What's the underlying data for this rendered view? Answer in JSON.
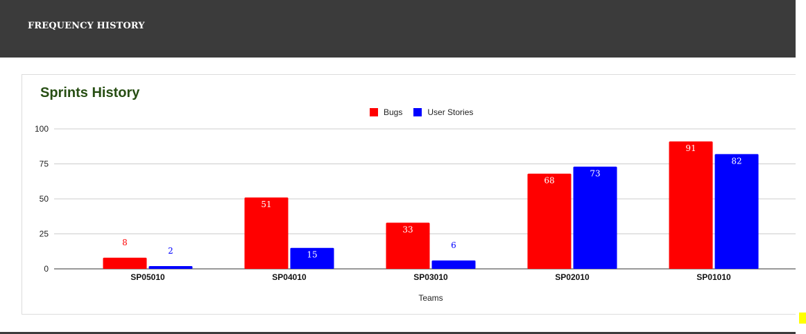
{
  "header": {
    "title": "FREQUENCY HISTORY"
  },
  "chart_data": {
    "type": "bar",
    "title": "Sprints History",
    "xlabel": "Teams",
    "ylabel": "",
    "ylim": [
      0,
      100
    ],
    "yticks": [
      0,
      25,
      50,
      75,
      100
    ],
    "categories": [
      "SP05010",
      "SP04010",
      "SP03010",
      "SP02010",
      "SP01010"
    ],
    "series": [
      {
        "name": "Bugs",
        "color": "#ff0000",
        "values": [
          8,
          51,
          33,
          68,
          91
        ]
      },
      {
        "name": "User Stories",
        "color": "#0000ff",
        "values": [
          2,
          15,
          6,
          73,
          82
        ]
      }
    ],
    "grid": true,
    "legend": "top-center"
  }
}
